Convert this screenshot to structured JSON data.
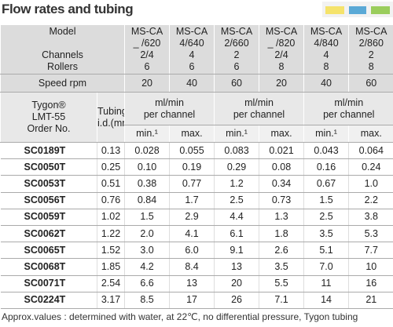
{
  "title": "Flow rates and tubing",
  "header": {
    "model_label": [
      "Model",
      "Channels",
      "Rollers"
    ],
    "speed_label": "Speed rpm",
    "tygon_label": [
      "Tygon®",
      "LMT-55",
      "Order No."
    ],
    "tubing_label": [
      "Tubing",
      "i.d.(mm)"
    ],
    "pumps": [
      {
        "model": [
          "MS-CA",
          "_ /620"
        ],
        "channels": "2/4",
        "rollers": "6",
        "speed": "20"
      },
      {
        "model": [
          "MS-CA",
          "4/640"
        ],
        "channels": "4",
        "rollers": "6",
        "speed": "40"
      },
      {
        "model": [
          "MS-CA",
          "2/660"
        ],
        "channels": "2",
        "rollers": "6",
        "speed": "60"
      },
      {
        "model": [
          "MS-CA",
          "_ /820"
        ],
        "channels": "2/4",
        "rollers": "8",
        "speed": "20"
      },
      {
        "model": [
          "MS-CA",
          "4/840"
        ],
        "channels": "4",
        "rollers": "8",
        "speed": "40"
      },
      {
        "model": [
          "MS-CA",
          "2/860"
        ],
        "channels": "2",
        "rollers": "8",
        "speed": "60"
      }
    ],
    "flow_groups": [
      [
        "ml/min",
        "per channel"
      ],
      [
        "ml/min",
        "per channel"
      ],
      [
        "ml/min",
        "per channel"
      ]
    ],
    "subheaders": [
      "min.¹",
      "max.",
      "min.¹",
      "max.",
      "min.¹",
      "max."
    ]
  },
  "table": {
    "rows": [
      [
        "SC0189T",
        "0.13",
        "0.028",
        "0.055",
        "0.083",
        "0.021",
        "0.043",
        "0.064"
      ],
      [
        "SC0050T",
        "0.25",
        "0.10",
        "0.19",
        "0.29",
        "0.08",
        "0.16",
        "0.24"
      ],
      [
        "SC0053T",
        "0.51",
        "0.38",
        "0.77",
        "1.2",
        "0.34",
        "0.67",
        "1.0"
      ],
      [
        "SC0056T",
        "0.76",
        "0.84",
        "1.7",
        "2.5",
        "0.73",
        "1.5",
        "2.2"
      ],
      [
        "SC0059T",
        "1.02",
        "1.5",
        "2.9",
        "4.4",
        "1.3",
        "2.5",
        "3.8"
      ],
      [
        "SC0062T",
        "1.22",
        "2.0",
        "4.1",
        "6.1",
        "1.8",
        "3.5",
        "5.3"
      ],
      [
        "SC0065T",
        "1.52",
        "3.0",
        "6.0",
        "9.1",
        "2.6",
        "5.1",
        "7.7"
      ],
      [
        "SC0068T",
        "1.85",
        "4.2",
        "8.4",
        "13",
        "3.5",
        "7.0",
        "10"
      ],
      [
        "SC0071T",
        "2.54",
        "6.6",
        "13",
        "20",
        "5.5",
        "11",
        "16"
      ],
      [
        "SC0224T",
        "3.17",
        "8.5",
        "17",
        "26",
        "7.1",
        "14",
        "21"
      ]
    ]
  },
  "note": "Approx.values : determined with water, at 22℃, no differential pressure, Tygon tubing"
}
